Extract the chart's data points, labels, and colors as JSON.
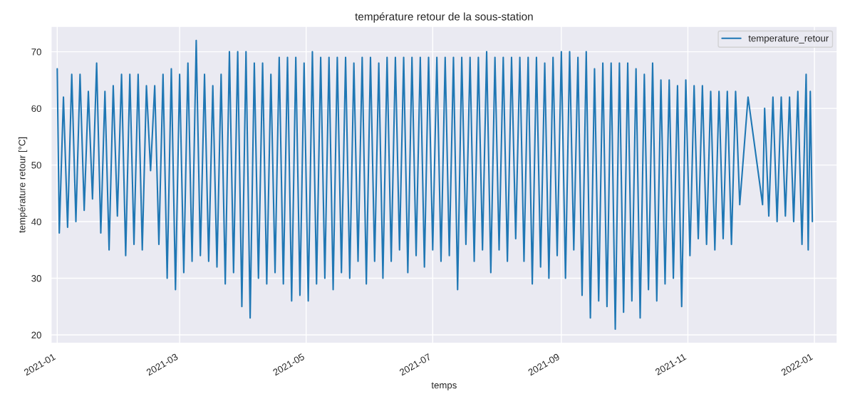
{
  "chart_data": {
    "type": "line",
    "title": "température retour de la sous-station",
    "xlabel": "temps",
    "ylabel": "température retour [°C]",
    "x": [
      "2021-01-01",
      "2021-01-02",
      "2021-01-04",
      "2021-01-06",
      "2021-01-08",
      "2021-01-10",
      "2021-01-12",
      "2021-01-14",
      "2021-01-16",
      "2021-01-18",
      "2021-01-20",
      "2021-01-22",
      "2021-01-24",
      "2021-01-26",
      "2021-01-28",
      "2021-01-30",
      "2021-02-01",
      "2021-02-03",
      "2021-02-05",
      "2021-02-07",
      "2021-02-09",
      "2021-02-11",
      "2021-02-13",
      "2021-02-15",
      "2021-02-17",
      "2021-02-19",
      "2021-02-21",
      "2021-02-23",
      "2021-02-25",
      "2021-02-27",
      "2021-03-01",
      "2021-03-03",
      "2021-03-05",
      "2021-03-07",
      "2021-03-09",
      "2021-03-11",
      "2021-03-13",
      "2021-03-15",
      "2021-03-17",
      "2021-03-19",
      "2021-03-21",
      "2021-03-23",
      "2021-03-25",
      "2021-03-27",
      "2021-03-29",
      "2021-03-31",
      "2021-04-02",
      "2021-04-04",
      "2021-04-06",
      "2021-04-08",
      "2021-04-10",
      "2021-04-12",
      "2021-04-14",
      "2021-04-16",
      "2021-04-18",
      "2021-04-20",
      "2021-04-22",
      "2021-04-24",
      "2021-04-26",
      "2021-04-28",
      "2021-04-30",
      "2021-05-02",
      "2021-05-04",
      "2021-05-06",
      "2021-05-08",
      "2021-05-10",
      "2021-05-12",
      "2021-05-14",
      "2021-05-16",
      "2021-05-18",
      "2021-05-20",
      "2021-05-22",
      "2021-05-24",
      "2021-05-26",
      "2021-05-28",
      "2021-05-30",
      "2021-06-01",
      "2021-06-03",
      "2021-06-05",
      "2021-06-07",
      "2021-06-09",
      "2021-06-11",
      "2021-06-13",
      "2021-06-15",
      "2021-06-17",
      "2021-06-19",
      "2021-06-21",
      "2021-06-23",
      "2021-06-25",
      "2021-06-27",
      "2021-06-29",
      "2021-07-01",
      "2021-07-03",
      "2021-07-05",
      "2021-07-07",
      "2021-07-09",
      "2021-07-11",
      "2021-07-13",
      "2021-07-15",
      "2021-07-17",
      "2021-07-19",
      "2021-07-21",
      "2021-07-23",
      "2021-07-25",
      "2021-07-27",
      "2021-07-29",
      "2021-07-31",
      "2021-08-02",
      "2021-08-04",
      "2021-08-06",
      "2021-08-08",
      "2021-08-10",
      "2021-08-12",
      "2021-08-14",
      "2021-08-16",
      "2021-08-18",
      "2021-08-20",
      "2021-08-22",
      "2021-08-24",
      "2021-08-26",
      "2021-08-28",
      "2021-08-30",
      "2021-09-01",
      "2021-09-03",
      "2021-09-05",
      "2021-09-07",
      "2021-09-09",
      "2021-09-11",
      "2021-09-13",
      "2021-09-15",
      "2021-09-17",
      "2021-09-19",
      "2021-09-21",
      "2021-09-23",
      "2021-09-25",
      "2021-09-27",
      "2021-09-29",
      "2021-10-01",
      "2021-10-03",
      "2021-10-05",
      "2021-10-07",
      "2021-10-09",
      "2021-10-11",
      "2021-10-13",
      "2021-10-15",
      "2021-10-17",
      "2021-10-19",
      "2021-10-21",
      "2021-10-23",
      "2021-10-25",
      "2021-10-27",
      "2021-10-29",
      "2021-10-31",
      "2021-11-02",
      "2021-11-04",
      "2021-11-06",
      "2021-11-08",
      "2021-11-10",
      "2021-11-12",
      "2021-11-14",
      "2021-11-16",
      "2021-11-18",
      "2021-11-20",
      "2021-11-22",
      "2021-11-24",
      "2021-11-26",
      "2021-11-30",
      "2021-12-07",
      "2021-12-08",
      "2021-12-10",
      "2021-12-12",
      "2021-12-14",
      "2021-12-16",
      "2021-12-18",
      "2021-12-20",
      "2021-12-22",
      "2021-12-24",
      "2021-12-26",
      "2021-12-28",
      "2021-12-29",
      "2021-12-30",
      "2021-12-31"
    ],
    "series": [
      {
        "name": "temperature_retour",
        "color": "#1f77b4",
        "values": [
          67,
          38,
          62,
          39,
          66,
          40,
          66,
          42,
          63,
          44,
          68,
          38,
          63,
          35,
          64,
          41,
          66,
          34,
          66,
          36,
          66,
          35,
          64,
          49,
          64,
          36,
          66,
          30,
          67,
          28,
          66,
          31,
          68,
          33,
          72,
          34,
          66,
          33,
          64,
          32,
          66,
          29,
          70,
          31,
          70,
          25,
          70,
          23,
          68,
          30,
          68,
          29,
          66,
          31,
          69,
          29,
          69,
          26,
          69,
          27,
          68,
          26,
          70,
          29,
          69,
          30,
          69,
          28,
          69,
          31,
          69,
          30,
          68,
          33,
          69,
          29,
          69,
          33,
          68,
          30,
          69,
          33,
          69,
          35,
          69,
          31,
          69,
          34,
          69,
          32,
          69,
          35,
          69,
          33,
          69,
          34,
          69,
          28,
          69,
          36,
          69,
          33,
          69,
          35,
          70,
          31,
          69,
          35,
          69,
          33,
          69,
          37,
          69,
          33,
          69,
          29,
          69,
          32,
          68,
          30,
          69,
          34,
          70,
          30,
          70,
          35,
          69,
          27,
          70,
          23,
          67,
          26,
          68,
          25,
          68,
          21,
          68,
          24,
          68,
          26,
          67,
          23,
          66,
          28,
          68,
          26,
          65,
          29,
          65,
          30,
          64,
          25,
          65,
          34,
          64,
          37,
          64,
          36,
          63,
          35,
          63,
          37,
          63,
          36,
          63,
          43,
          62,
          43,
          60,
          41,
          62,
          40,
          62,
          41,
          62,
          40,
          63,
          36,
          66,
          35,
          63,
          40
        ]
      }
    ],
    "xlim": [
      "2020-12-29",
      "2022-01-12"
    ],
    "ylim": [
      18.5,
      74.5
    ],
    "xticks": [
      {
        "value": "2021-01-01",
        "label": "2021-01"
      },
      {
        "value": "2021-03-01",
        "label": "2021-03"
      },
      {
        "value": "2021-05-01",
        "label": "2021-05"
      },
      {
        "value": "2021-07-01",
        "label": "2021-07"
      },
      {
        "value": "2021-09-01",
        "label": "2021-09"
      },
      {
        "value": "2021-11-01",
        "label": "2021-11"
      },
      {
        "value": "2022-01-01",
        "label": "2022-01"
      }
    ],
    "yticks": [
      20,
      30,
      40,
      50,
      60,
      70
    ],
    "grid": true,
    "legend": "top right",
    "marker": "none",
    "line_style": "solid"
  }
}
